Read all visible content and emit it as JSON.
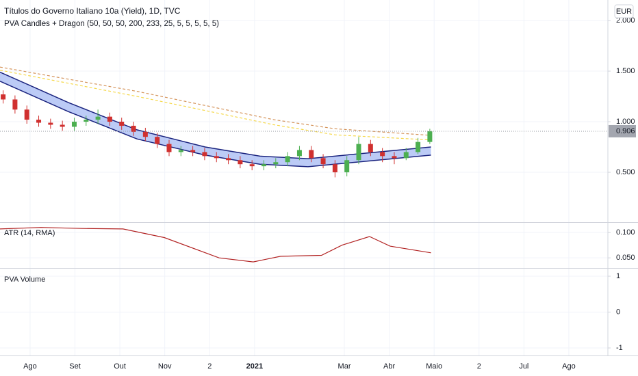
{
  "chart_data": [
    {
      "type": "candlestick",
      "title": "Títulos do Governo Italiano 10a (Yield), 1D, TVC",
      "subtitle": "PVA Candles + Dragon (50, 50, 50, 200, 233, 25, 5, 5, 5, 5, 5)",
      "currency": "EUR",
      "x": [
        -0.6,
        -0.336,
        -0.072,
        0.192,
        0.456,
        0.72,
        0.984,
        1.248,
        1.512,
        1.776,
        2.04,
        2.304,
        2.568,
        2.832,
        3.096,
        3.36,
        3.624,
        3.888,
        4.152,
        4.416,
        4.68,
        4.944,
        5.208,
        5.472,
        5.736,
        6.0,
        6.264,
        6.528,
        6.792,
        7.056,
        7.32,
        7.584,
        7.848,
        8.112,
        8.376,
        8.64,
        8.904
      ],
      "open": [
        1.27,
        1.22,
        1.12,
        1.02,
        0.99,
        0.97,
        0.95,
        1.0,
        1.02,
        1.05,
        1.0,
        0.96,
        0.9,
        0.85,
        0.78,
        0.7,
        0.72,
        0.7,
        0.66,
        0.64,
        0.62,
        0.58,
        0.56,
        0.58,
        0.6,
        0.66,
        0.72,
        0.64,
        0.58,
        0.5,
        0.62,
        0.78,
        0.7,
        0.66,
        0.64,
        0.7,
        0.8
      ],
      "high": [
        1.31,
        1.26,
        1.16,
        1.06,
        1.03,
        1.01,
        1.04,
        1.06,
        1.12,
        1.09,
        1.04,
        1.0,
        0.94,
        0.89,
        0.82,
        0.76,
        0.76,
        0.74,
        0.7,
        0.68,
        0.66,
        0.62,
        0.62,
        0.64,
        0.7,
        0.76,
        0.76,
        0.68,
        0.62,
        0.66,
        0.85,
        0.82,
        0.74,
        0.7,
        0.74,
        0.84,
        0.93
      ],
      "low": [
        1.18,
        1.08,
        0.98,
        0.95,
        0.93,
        0.91,
        0.91,
        0.96,
        0.98,
        0.96,
        0.92,
        0.86,
        0.81,
        0.74,
        0.66,
        0.66,
        0.66,
        0.62,
        0.6,
        0.58,
        0.54,
        0.52,
        0.52,
        0.54,
        0.56,
        0.62,
        0.6,
        0.54,
        0.45,
        0.46,
        0.58,
        0.66,
        0.6,
        0.58,
        0.62,
        0.68,
        0.78
      ],
      "close": [
        1.22,
        1.12,
        1.02,
        0.99,
        0.97,
        0.95,
        1.0,
        1.02,
        1.05,
        1.0,
        0.96,
        0.9,
        0.85,
        0.78,
        0.7,
        0.72,
        0.7,
        0.66,
        0.64,
        0.62,
        0.58,
        0.56,
        0.58,
        0.6,
        0.66,
        0.72,
        0.64,
        0.58,
        0.5,
        0.62,
        0.78,
        0.7,
        0.66,
        0.64,
        0.7,
        0.8,
        0.906
      ],
      "up_color": "#4caf50",
      "down_color": "#d0302f",
      "last_price_label": "0.906",
      "band": {
        "color": "#1a237e",
        "fill": "#90a8f0",
        "x": [
          -0.67,
          0.85,
          2.38,
          3.9,
          5.12,
          6.19,
          7.26,
          8.93
        ],
        "upper": [
          1.49,
          1.19,
          0.92,
          0.75,
          0.66,
          0.635,
          0.68,
          0.75
        ],
        "lower": [
          1.4,
          1.1,
          0.83,
          0.67,
          0.58,
          0.555,
          0.6,
          0.67
        ]
      },
      "lines": [
        {
          "color": "#d4935a",
          "x": [
            -0.67,
            2.38,
            5.43,
            6.8,
            8.93
          ],
          "values": [
            1.54,
            1.3,
            1.02,
            0.93,
            0.865
          ]
        },
        {
          "color": "#f5d84a",
          "x": [
            -0.67,
            2.38,
            5.43,
            6.8,
            8.93
          ],
          "values": [
            1.51,
            1.25,
            0.97,
            0.87,
            0.82
          ]
        }
      ],
      "xlim": [
        -0.67,
        12.87
      ],
      "xticks": [
        {
          "value": 0,
          "label": "Ago"
        },
        {
          "value": 1,
          "label": "Set"
        },
        {
          "value": 2,
          "label": "Out"
        },
        {
          "value": 3,
          "label": "Nov"
        },
        {
          "value": 4,
          "label": "2"
        },
        {
          "value": 5,
          "label": "2021"
        },
        {
          "value": 7,
          "label": "Mar"
        },
        {
          "value": 8,
          "label": "Abr"
        },
        {
          "value": 9,
          "label": "Maio"
        },
        {
          "value": 10,
          "label": "2"
        },
        {
          "value": 11,
          "label": "Jul"
        },
        {
          "value": 12,
          "label": "Ago"
        }
      ],
      "ylim": [
        0.007,
        2.203
      ],
      "yticks": [
        {
          "value": 0.5,
          "label": "0.500"
        },
        {
          "value": 1.0,
          "label": "1.000"
        },
        {
          "value": 1.5,
          "label": "1.500"
        },
        {
          "value": 2.0,
          "label": "2.000"
        }
      ],
      "grid": true
    },
    {
      "type": "line",
      "title": "ATR (14, RMA)",
      "color": "#b22222",
      "x": [
        -0.67,
        0.24,
        1.16,
        2.07,
        2.99,
        4.21,
        4.97,
        5.58,
        6.49,
        6.95,
        7.56,
        8.02,
        8.93
      ],
      "values": [
        0.107,
        0.11,
        0.108,
        0.107,
        0.09,
        0.05,
        0.042,
        0.053,
        0.055,
        0.075,
        0.092,
        0.073,
        0.06
      ],
      "ylim": [
        0.03,
        0.119
      ],
      "yticks": [
        {
          "value": 0.05,
          "label": "0.050"
        },
        {
          "value": 0.1,
          "label": "0.100"
        }
      ],
      "grid": true
    },
    {
      "type": "empty",
      "title": "PVA Volume",
      "ylim": [
        -1.21,
        1.21
      ],
      "yticks": [
        -1,
        0,
        1
      ],
      "grid": true
    }
  ]
}
